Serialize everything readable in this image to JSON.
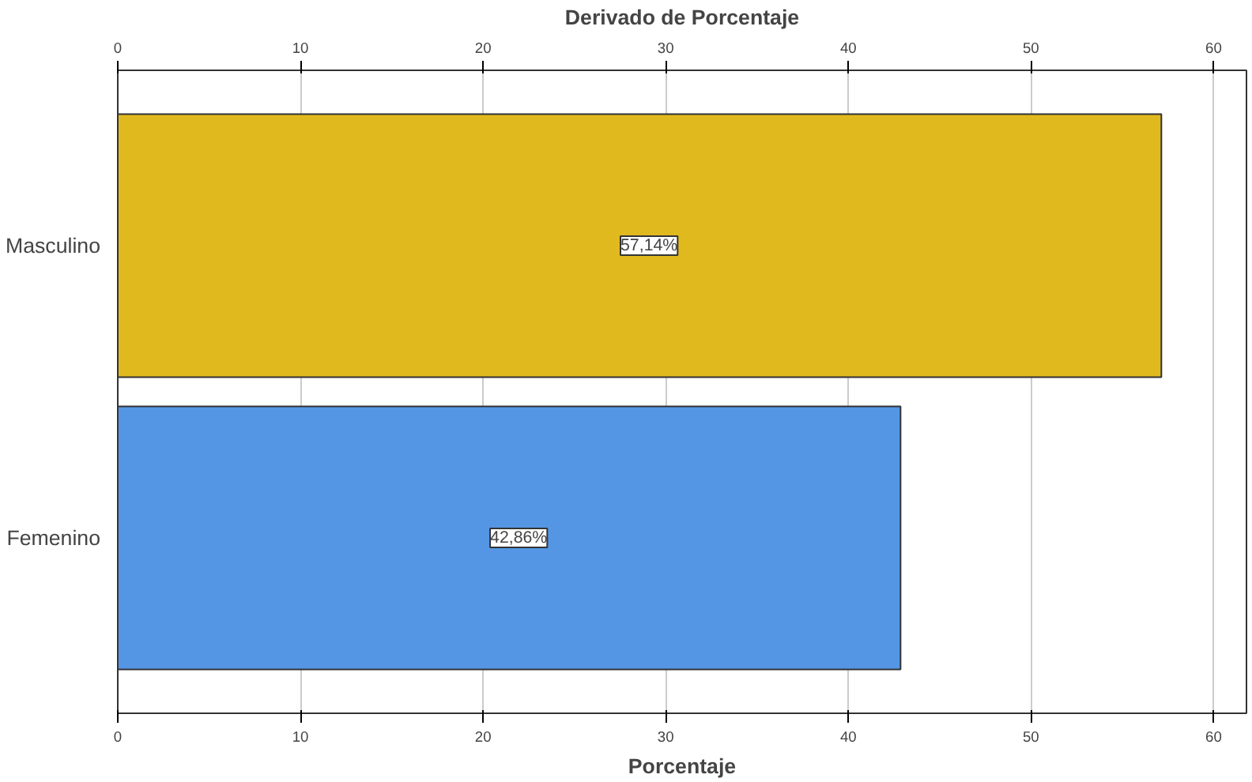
{
  "chart_data": {
    "type": "bar",
    "orientation": "horizontal",
    "x2label": "Derivado de Porcentaje",
    "xlabel": "Porcentaje",
    "categories": [
      "Masculino",
      "Femenino"
    ],
    "values": [
      57.14,
      42.86
    ],
    "colors": [
      "#e0b91f",
      "#5496e4"
    ],
    "value_labels": [
      "57,14%",
      "42,86%"
    ],
    "xlim": [
      0,
      61.8
    ],
    "xticks": [
      0,
      10,
      20,
      30,
      40,
      50,
      60
    ],
    "x2lim": [
      0,
      61.8
    ],
    "x2ticks": [
      0,
      10,
      20,
      30,
      40,
      50,
      60
    ],
    "grid": "x"
  }
}
